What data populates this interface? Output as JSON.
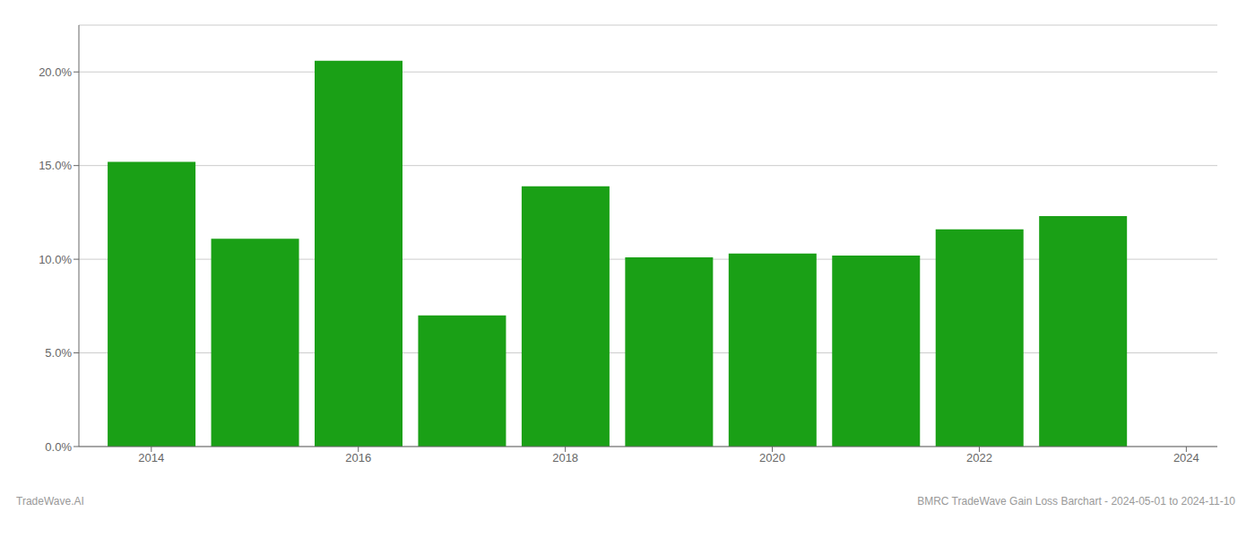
{
  "chart_data": {
    "type": "bar",
    "x": [
      2014,
      2015,
      2016,
      2017,
      2018,
      2019,
      2020,
      2021,
      2022,
      2023
    ],
    "values": [
      0.152,
      0.111,
      0.206,
      0.07,
      0.139,
      0.101,
      0.103,
      0.102,
      0.116,
      0.123
    ],
    "color": "#1aa016",
    "xlim": [
      2013.3,
      2024.3
    ],
    "xticks": [
      2014,
      2016,
      2018,
      2020,
      2022,
      2024
    ],
    "ylim": [
      0,
      0.225
    ],
    "yticks": [
      {
        "value": 0.0,
        "label": "0.0%"
      },
      {
        "value": 0.05,
        "label": "5.0%"
      },
      {
        "value": 0.1,
        "label": "10.0%"
      },
      {
        "value": 0.15,
        "label": "15.0%"
      },
      {
        "value": 0.2,
        "label": "20.0%"
      }
    ],
    "grid": true,
    "annotations": [
      "TradeWave.AI",
      "BMRC TradeWave Gain Loss Barchart - 2024-05-01 to 2024-11-10"
    ]
  }
}
